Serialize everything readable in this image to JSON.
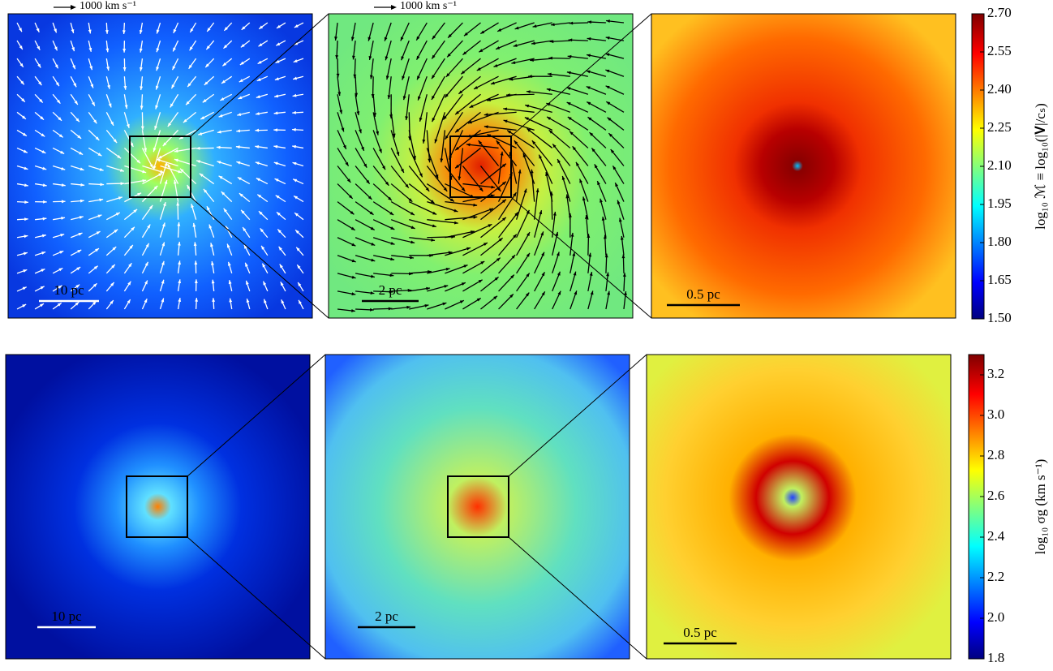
{
  "rows": [
    {
      "colorbar": {
        "label": "log₁₀ ℳ ≡ log₁₀(|𝐕|/cₛ)",
        "lim": [
          1.5,
          2.7
        ],
        "ticks": [
          {
            "value": 1.5,
            "label": "1.50"
          },
          {
            "value": 1.65,
            "label": "1.65"
          },
          {
            "value": 1.8,
            "label": "1.80"
          },
          {
            "value": 1.95,
            "label": "1.95"
          },
          {
            "value": 2.1,
            "label": "2.10"
          },
          {
            "value": 2.25,
            "label": "2.25"
          },
          {
            "value": 2.4,
            "label": "2.40"
          },
          {
            "value": 2.55,
            "label": "2.55"
          },
          {
            "value": 2.7,
            "label": "2.70"
          }
        ]
      },
      "panels": [
        {
          "scale_bar": "10 pc",
          "velocity_key": "1000 km s⁻¹"
        },
        {
          "scale_bar": "2 pc",
          "velocity_key": "1000 km s⁻¹"
        },
        {
          "scale_bar": "0.5 pc"
        }
      ]
    },
    {
      "colorbar": {
        "label": "log₁₀ σg (km s⁻¹)",
        "lim": [
          1.8,
          3.3
        ],
        "ticks": [
          1.8,
          {
            "value": 2,
            "label": "2.0"
          },
          2.2,
          2.4,
          2.6,
          2.8,
          {
            "value": 3,
            "label": "3.0"
          },
          3.2
        ]
      },
      "panels": [
        {
          "scale_bar": "10 pc"
        },
        {
          "scale_bar": "2 pc"
        },
        {
          "scale_bar": "0.5 pc"
        }
      ]
    }
  ]
}
